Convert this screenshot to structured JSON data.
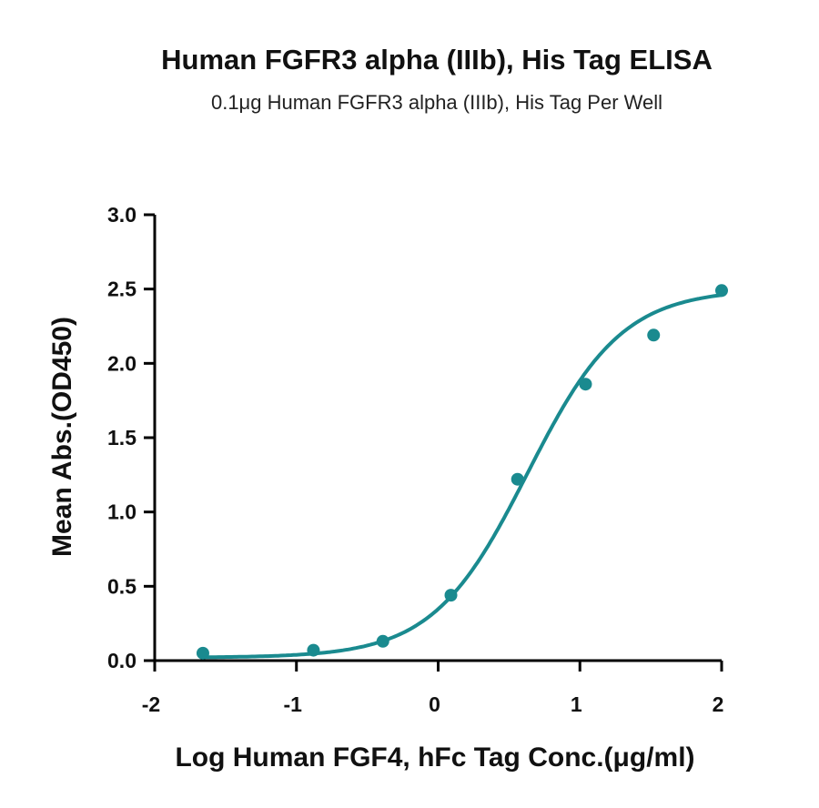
{
  "chart_data": {
    "type": "scatter",
    "title": "Human FGFR3 alpha (IIIb), His Tag ELISA",
    "subtitle": "0.1μg Human FGFR3 alpha (IIIb), His Tag Per Well",
    "xlabel": "Log Human FGF4, hFc Tag Conc.(μg/ml)",
    "ylabel": "Mean Abs.(OD450)",
    "xlim": [
      -2,
      2
    ],
    "ylim": [
      0,
      3
    ],
    "x_ticks": [
      "-2",
      "-1",
      "0",
      "1",
      "2"
    ],
    "y_ticks": [
      "0.0",
      "0.5",
      "1.0",
      "1.5",
      "2.0",
      "2.5",
      "3.0"
    ],
    "series": [
      {
        "points": [
          {
            "x": -1.66,
            "y": 0.05
          },
          {
            "x": -0.88,
            "y": 0.07
          },
          {
            "x": -0.39,
            "y": 0.13
          },
          {
            "x": 0.09,
            "y": 0.44
          },
          {
            "x": 0.56,
            "y": 1.22
          },
          {
            "x": 1.04,
            "y": 1.86
          },
          {
            "x": 1.52,
            "y": 2.19
          },
          {
            "x": 2.0,
            "y": 2.49
          }
        ],
        "fit": {
          "model": "4PL",
          "bottom": 0.02,
          "top": 2.5,
          "log_ec50": 0.63,
          "hill": 1.3,
          "x_range": [
            -1.66,
            2.0
          ]
        }
      }
    ],
    "colors": {
      "series": "#1a8a8f",
      "axis": "#000000",
      "text": "#111111"
    },
    "grid": false,
    "legend": "none"
  }
}
